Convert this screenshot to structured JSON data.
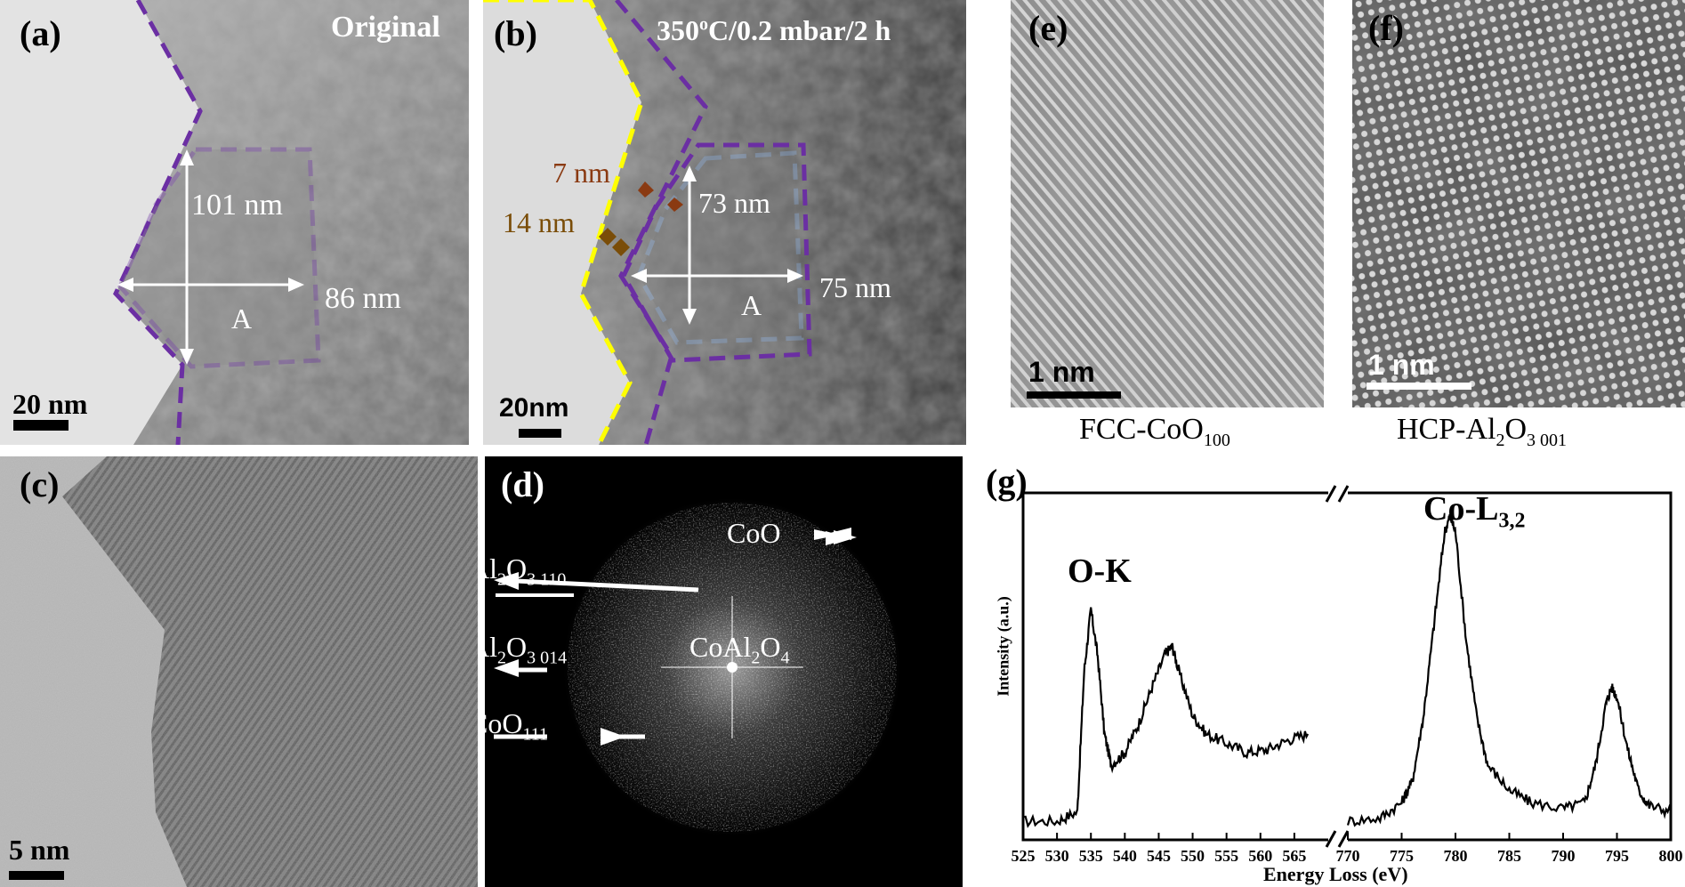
{
  "panel_a": {
    "label": "(a)",
    "title": "Original",
    "height_label": "101 nm",
    "width_label": "86 nm",
    "region_label": "A",
    "scale_bar": "20 nm"
  },
  "panel_b": {
    "label": "(b)",
    "title_main": "350",
    "title_super": "o",
    "title_rest": "C/0.2 mbar/2 h",
    "shell1_label": "7 nm",
    "shell2_label": "14 nm",
    "height_label": "73 nm",
    "width_label": "75 nm",
    "region_label": "A",
    "scale_bar": "20nm"
  },
  "panel_c": {
    "label": "(c)",
    "scale_bar": "5 nm"
  },
  "panel_d": {
    "label": "(d)",
    "spots": [
      {
        "base": "Al",
        "sub1": "2",
        "mid": "O",
        "sub2": "3 110"
      },
      {
        "base": "Al",
        "sub1": "2",
        "mid": "O",
        "sub2": "3 014"
      },
      {
        "base": "CoO",
        "sub1": "111",
        "mid": "",
        "sub2": ""
      },
      {
        "base": "CoO",
        "sub1": "",
        "mid": "",
        "sub2": ""
      },
      {
        "base": "CoAl",
        "sub1": "2",
        "mid": "O",
        "sub2": "4"
      }
    ]
  },
  "panel_e": {
    "label": "(e)",
    "scale_bar": "1 nm",
    "caption_main": "FCC-CoO",
    "caption_sub": "100"
  },
  "panel_f": {
    "label": "(f)",
    "scale_bar": "1 nm",
    "caption_main": "HCP-Al",
    "caption_sub1": "2",
    "caption_mid": "O",
    "caption_sub2": "3 001"
  },
  "panel_g": {
    "label": "(g)",
    "ylabel": "Intensity (a.u.)",
    "xlabel": "Energy Loss (eV)",
    "peak1_label": "O-K",
    "peak2_label_main": "Co-L",
    "peak2_label_sub": "3,2"
  },
  "chart_data": {
    "type": "line",
    "xlabel": "Energy Loss (eV)",
    "ylabel": "Intensity (a.u.)",
    "broken_axis": true,
    "segments": [
      {
        "xlim": [
          525,
          570
        ],
        "ticks": [
          525,
          530,
          535,
          540,
          545,
          550,
          555,
          560,
          565
        ],
        "x": [
          525,
          530,
          533,
          534,
          535,
          536,
          537,
          538,
          540,
          542,
          544,
          546,
          547,
          548,
          550,
          552,
          555,
          558,
          561,
          564,
          567
        ],
        "y": [
          0.02,
          0.02,
          0.05,
          0.5,
          0.7,
          0.55,
          0.3,
          0.2,
          0.24,
          0.33,
          0.45,
          0.56,
          0.58,
          0.5,
          0.36,
          0.3,
          0.27,
          0.24,
          0.25,
          0.28,
          0.3
        ]
      },
      {
        "xlim": [
          770,
          800
        ],
        "ticks": [
          770,
          775,
          780,
          785,
          790,
          795,
          800
        ],
        "x": [
          770,
          773,
          775,
          776,
          777,
          778,
          779,
          779.5,
          780,
          781,
          782,
          783,
          785,
          787,
          790,
          792,
          793,
          794,
          794.5,
          795,
          796,
          797,
          798,
          800
        ],
        "y": [
          0.02,
          0.03,
          0.08,
          0.15,
          0.35,
          0.65,
          0.95,
          1.0,
          0.95,
          0.6,
          0.35,
          0.2,
          0.12,
          0.08,
          0.06,
          0.08,
          0.2,
          0.4,
          0.45,
          0.42,
          0.25,
          0.12,
          0.07,
          0.05
        ]
      }
    ],
    "annotations": [
      "O-K",
      "Co-L3,2"
    ]
  }
}
